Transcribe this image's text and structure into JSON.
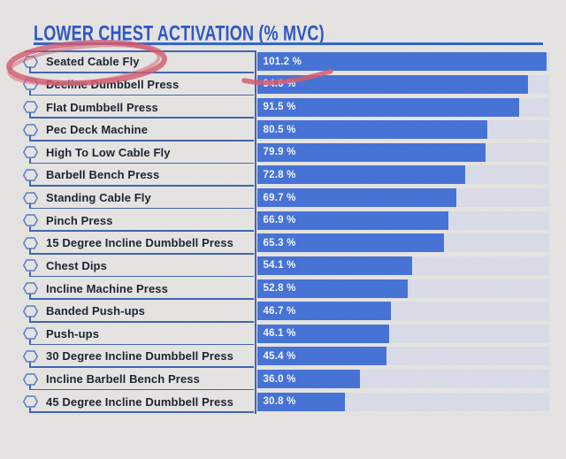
{
  "header": {
    "title": "LOWER CHEST ACTIVATION (% MVC)"
  },
  "colors": {
    "accent_blue": "#2b55c4",
    "underline_blue": "#2f63d0",
    "line_blue": "#3f63b0",
    "bar_blue": "#4471d6",
    "track_blue_gray": "#d9dce8",
    "label_text": "#18202f",
    "value_text": "#f3f5fa",
    "hexagon_stroke": "#5b79c9",
    "annotation_red": "#d25d70",
    "background": "#e6e4e2"
  },
  "chart_data": {
    "type": "bar",
    "orientation": "horizontal",
    "title": "LOWER CHEST ACTIVATION (% MVC)",
    "unit": "% MVC",
    "xlim": [
      0,
      102
    ],
    "grid": false,
    "legend": false,
    "categories": [
      "Seated Cable Fly",
      "Decline Dumbbell Press",
      "Flat Dumbbell Press",
      "Pec Deck Machine",
      "High To Low Cable Fly",
      "Barbell Bench Press",
      "Standing Cable Fly",
      "Pinch Press",
      "15 Degree Incline Dumbbell Press",
      "Chest Dips",
      "Incline Machine Press",
      "Banded Push-ups",
      "Push-ups",
      "30 Degree Incline Dumbbell Press",
      "Incline Barbell Bench Press",
      "45 Degree Incline Dumbbell Press"
    ],
    "values": [
      101.2,
      94.6,
      91.5,
      80.5,
      79.9,
      72.8,
      69.7,
      66.9,
      65.3,
      54.1,
      52.8,
      46.7,
      46.1,
      45.4,
      36.0,
      30.8
    ],
    "value_labels": [
      "101.2 %",
      "94.6 %",
      "91.5 %",
      "80.5 %",
      "79.9 %",
      "72.8 %",
      "69.7 %",
      "66.9 %",
      "65.3 %",
      "54.1 %",
      "52.8 %",
      "46.7 %",
      "46.1 %",
      "45.4 %",
      "36.0 %",
      "30.8 %"
    ]
  },
  "annotations": {
    "circle": {
      "shape": "hand-drawn-ellipse",
      "target": "Seated Cable Fly",
      "color": "#d25d70"
    },
    "underline": {
      "shape": "hand-drawn-stroke",
      "target": "101.2 %",
      "color": "#d25d70"
    }
  },
  "icons": {
    "row_marker": "hexagon-outline"
  }
}
